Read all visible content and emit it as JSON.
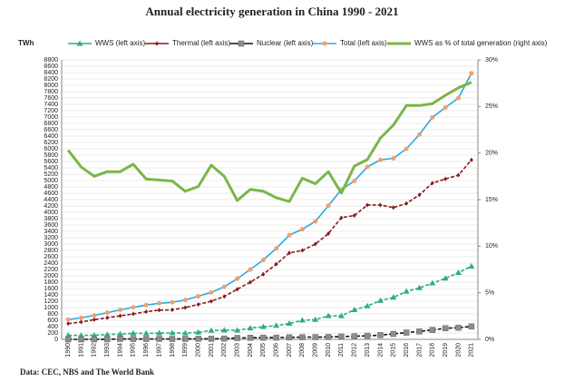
{
  "chart_data": {
    "type": "line",
    "title": "Annual electricity generation in China 1990 - 2021",
    "ylabel": "TWh",
    "source": "Data: CEC, NBS and The World Bank",
    "categories": [
      "1990",
      "1991",
      "1992",
      "1993",
      "1994",
      "1995",
      "1996",
      "1997",
      "1998",
      "1999",
      "2000",
      "2001",
      "2002",
      "2003",
      "2004",
      "2005",
      "2006",
      "2007",
      "2008",
      "2009",
      "2010",
      "2011",
      "2012",
      "2013",
      "2014",
      "2015",
      "2016",
      "2017",
      "2018",
      "2019",
      "2020",
      "2021"
    ],
    "ylim": [
      0,
      8800
    ],
    "yticks": [
      0,
      200,
      400,
      600,
      800,
      1000,
      1200,
      1400,
      1600,
      1800,
      2000,
      2200,
      2400,
      2600,
      2800,
      3000,
      3200,
      3400,
      3600,
      3800,
      4000,
      4200,
      4400,
      4600,
      4800,
      5000,
      5200,
      5400,
      5600,
      5800,
      6000,
      6200,
      6400,
      6600,
      6800,
      7000,
      7200,
      7400,
      7600,
      7800,
      8000,
      8200,
      8400,
      8600,
      8800
    ],
    "y2lim": [
      0,
      30
    ],
    "y2ticks": [
      {
        "value": 0,
        "label": "0%"
      },
      {
        "value": 5,
        "label": "5%"
      },
      {
        "value": 10,
        "label": "10%"
      },
      {
        "value": 15,
        "label": "15%"
      },
      {
        "value": 20,
        "label": "20%"
      },
      {
        "value": 25,
        "label": "25%"
      },
      {
        "value": 30,
        "label": "30%"
      }
    ],
    "grid": true,
    "series": [
      {
        "name": "WWS (left axis)",
        "color": "#2fb07c",
        "marker": "triangle",
        "values": [
          126,
          125,
          130,
          151,
          167,
          190,
          188,
          196,
          204,
          196,
          222,
          277,
          290,
          284,
          354,
          397,
          435,
          500,
          600,
          620,
          740,
          740,
          930,
          1050,
          1220,
          1320,
          1510,
          1620,
          1770,
          1920,
          2100,
          2300
        ]
      },
      {
        "name": "Thermal (left axis)",
        "color": "#8b1a1a",
        "marker": "diamond",
        "values": [
          495,
          546,
          620,
          680,
          740,
          800,
          870,
          920,
          930,
          1000,
          1100,
          1200,
          1350,
          1580,
          1800,
          2050,
          2370,
          2720,
          2800,
          3000,
          3330,
          3830,
          3900,
          4230,
          4230,
          4150,
          4280,
          4550,
          4920,
          5050,
          5170,
          5650
        ]
      },
      {
        "name": "Nuclear (left axis)",
        "color": "#111111",
        "marker": "square",
        "values": [
          0,
          0,
          0,
          2,
          14,
          13,
          14,
          14,
          14,
          15,
          17,
          17,
          25,
          43,
          50,
          53,
          55,
          62,
          68,
          70,
          74,
          87,
          98,
          112,
          133,
          171,
          213,
          248,
          295,
          349,
          366,
          408
        ]
      },
      {
        "name": "Total (left axis)",
        "color": "#29a8e0",
        "marker": "circle",
        "values": [
          621,
          678,
          754,
          839,
          928,
          1007,
          1081,
          1135,
          1167,
          1239,
          1356,
          1480,
          1654,
          1911,
          2200,
          2500,
          2866,
          3282,
          3467,
          3715,
          4207,
          4713,
          4987,
          5432,
          5650,
          5700,
          6000,
          6450,
          6990,
          7300,
          7600,
          8377
        ]
      },
      {
        "name": "WWS as % of total generation (right axis)",
        "color": "#7ab648",
        "axis": "y2",
        "values": [
          20.3,
          18.5,
          17.5,
          18.0,
          18.0,
          18.8,
          17.2,
          17.1,
          17.0,
          15.9,
          16.4,
          18.7,
          17.5,
          14.9,
          16.1,
          15.9,
          15.2,
          14.8,
          17.3,
          16.7,
          18.0,
          15.7,
          18.6,
          19.3,
          21.6,
          23.0,
          25.1,
          25.1,
          25.3,
          26.2,
          27.0,
          27.6
        ]
      }
    ]
  }
}
